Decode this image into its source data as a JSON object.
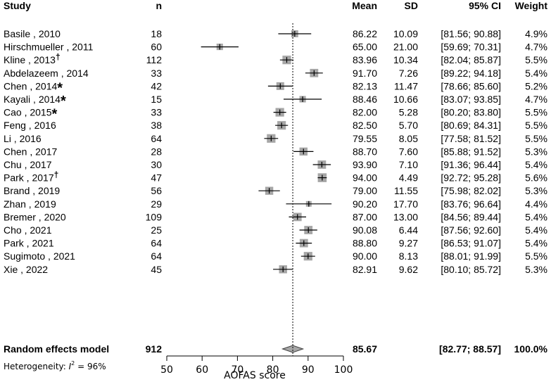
{
  "chart_data": {
    "type": "forest",
    "headers": {
      "study": "Study",
      "n": "n",
      "mean": "Mean",
      "sd": "SD",
      "ci": "95% CI",
      "weight": "Weight"
    },
    "xlabel": "AOFAS score",
    "xlim": [
      50,
      100
    ],
    "xticks": [
      50,
      60,
      70,
      80,
      90,
      100
    ],
    "reference_line": 85.67,
    "studies": [
      {
        "name": "Basile",
        "year": "2010",
        "mark": "",
        "n": "18",
        "mean": 86.22,
        "sd": "10.09",
        "lower": 81.56,
        "upper": 90.88,
        "ci_text": "[81.56; 90.88]",
        "weight": "4.9%"
      },
      {
        "name": "Hirschmueller",
        "year": "2011",
        "mark": "",
        "n": "60",
        "mean": 65.0,
        "sd": "21.00",
        "lower": 59.69,
        "upper": 70.31,
        "ci_text": "[59.69; 70.31]",
        "weight": "4.7%"
      },
      {
        "name": "Kline",
        "year": "2013",
        "mark": "†",
        "n": "112",
        "mean": 83.96,
        "sd": "10.34",
        "lower": 82.04,
        "upper": 85.87,
        "ci_text": "[82.04; 85.87]",
        "weight": "5.5%"
      },
      {
        "name": "Abdelazeem",
        "year": "2014",
        "mark": "",
        "n": "33",
        "mean": 91.7,
        "sd": "7.26",
        "lower": 89.22,
        "upper": 94.18,
        "ci_text": "[89.22; 94.18]",
        "weight": "5.4%"
      },
      {
        "name": "Chen",
        "year": "2014",
        "mark": "*",
        "n": "42",
        "mean": 82.13,
        "sd": "11.47",
        "lower": 78.66,
        "upper": 85.6,
        "ci_text": "[78.66; 85.60]",
        "weight": "5.2%"
      },
      {
        "name": "Kayali",
        "year": "2014",
        "mark": "*",
        "n": "15",
        "mean": 88.46,
        "sd": "10.66",
        "lower": 83.07,
        "upper": 93.85,
        "ci_text": "[83.07; 93.85]",
        "weight": "4.7%"
      },
      {
        "name": "Cao",
        "year": "2015",
        "mark": "*",
        "n": "33",
        "mean": 82.0,
        "sd": "5.28",
        "lower": 80.2,
        "upper": 83.8,
        "ci_text": "[80.20; 83.80]",
        "weight": "5.5%"
      },
      {
        "name": "Feng",
        "year": "2016",
        "mark": "",
        "n": "38",
        "mean": 82.5,
        "sd": "5.70",
        "lower": 80.69,
        "upper": 84.31,
        "ci_text": "[80.69; 84.31]",
        "weight": "5.5%"
      },
      {
        "name": "Li",
        "year": "2016",
        "mark": "",
        "n": "64",
        "mean": 79.55,
        "sd": "8.05",
        "lower": 77.58,
        "upper": 81.52,
        "ci_text": "[77.58; 81.52]",
        "weight": "5.5%"
      },
      {
        "name": "Chen",
        "year": "2017",
        "mark": "",
        "n": "28",
        "mean": 88.7,
        "sd": "7.60",
        "lower": 85.88,
        "upper": 91.52,
        "ci_text": "[85.88; 91.52]",
        "weight": "5.3%"
      },
      {
        "name": "Chu",
        "year": "2017",
        "mark": "",
        "n": "30",
        "mean": 93.9,
        "sd": "7.10",
        "lower": 91.36,
        "upper": 96.44,
        "ci_text": "[91.36; 96.44]",
        "weight": "5.4%"
      },
      {
        "name": "Park",
        "year": "2017",
        "mark": "†",
        "n": "47",
        "mean": 94.0,
        "sd": "4.49",
        "lower": 92.72,
        "upper": 95.28,
        "ci_text": "[92.72; 95.28]",
        "weight": "5.6%"
      },
      {
        "name": "Brand",
        "year": "2019",
        "mark": "",
        "n": "56",
        "mean": 79.0,
        "sd": "11.55",
        "lower": 75.98,
        "upper": 82.02,
        "ci_text": "[75.98; 82.02]",
        "weight": "5.3%"
      },
      {
        "name": "Zhan",
        "year": "2019",
        "mark": "",
        "n": "29",
        "mean": 90.2,
        "sd": "17.70",
        "lower": 83.76,
        "upper": 96.64,
        "ci_text": "[83.76; 96.64]",
        "weight": "4.4%"
      },
      {
        "name": "Bremer",
        "year": "2020",
        "mark": "",
        "n": "109",
        "mean": 87.0,
        "sd": "13.00",
        "lower": 84.56,
        "upper": 89.44,
        "ci_text": "[84.56; 89.44]",
        "weight": "5.4%"
      },
      {
        "name": "Cho",
        "year": "2021",
        "mark": "",
        "n": "25",
        "mean": 90.08,
        "sd": "6.44",
        "lower": 87.56,
        "upper": 92.6,
        "ci_text": "[87.56; 92.60]",
        "weight": "5.4%"
      },
      {
        "name": "Park",
        "year": "2021",
        "mark": "",
        "n": "64",
        "mean": 88.8,
        "sd": "9.27",
        "lower": 86.53,
        "upper": 91.07,
        "ci_text": "[86.53; 91.07]",
        "weight": "5.4%"
      },
      {
        "name": "Sugimoto",
        "year": "2021",
        "mark": "",
        "n": "64",
        "mean": 90.0,
        "sd": "8.13",
        "lower": 88.01,
        "upper": 91.99,
        "ci_text": "[88.01; 91.99]",
        "weight": "5.5%"
      },
      {
        "name": "Xie",
        "year": "2022",
        "mark": "",
        "n": "45",
        "mean": 82.91,
        "sd": "9.62",
        "lower": 80.1,
        "upper": 85.72,
        "ci_text": "[80.10; 85.72]",
        "weight": "5.3%"
      }
    ],
    "summary": {
      "label": "Random effects model",
      "n": "912",
      "mean": 85.67,
      "mean_text": "85.67",
      "lower": 82.77,
      "upper": 88.57,
      "ci_text": "[82.77; 88.57]",
      "weight": "100.0%"
    },
    "heterogeneity": {
      "prefix": "Heterogeneity: ",
      "stat": "I",
      "power": "2",
      "value": " = 96%"
    },
    "colors": {
      "box": "#a6a6a6",
      "line": "#000000",
      "diamond": "#a6a6a6"
    }
  }
}
